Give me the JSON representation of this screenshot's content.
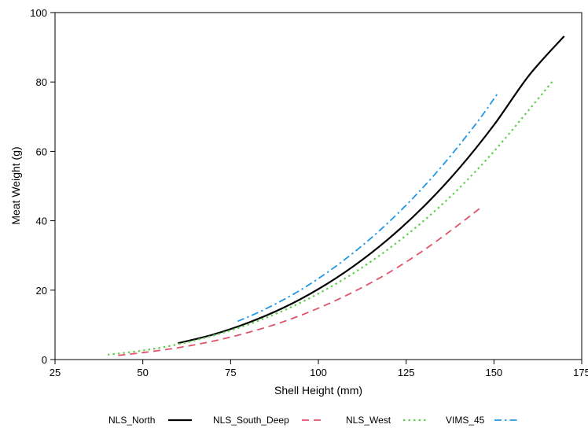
{
  "chart_data": {
    "type": "line",
    "xlabel": "Shell Height (mm)",
    "ylabel": "Meat Weight (g)",
    "xlim": [
      25,
      175
    ],
    "ylim": [
      0,
      100
    ],
    "xticks": [
      25,
      50,
      75,
      100,
      125,
      150,
      175
    ],
    "yticks": [
      0,
      20,
      40,
      60,
      80,
      100
    ],
    "grid": false,
    "legend_position": "bottom",
    "series": [
      {
        "name": "NLS_North",
        "color": "#000000",
        "dash": "solid",
        "x": [
          60,
          70,
          80,
          90,
          100,
          110,
          120,
          130,
          140,
          150,
          160,
          170
        ],
        "y": [
          4.7,
          7.2,
          10.6,
          14.9,
          20.3,
          26.9,
          34.8,
          44.1,
          55.0,
          67.6,
          81.9,
          93.2
        ]
      },
      {
        "name": "NLS_South_Deep",
        "color": "#df536b",
        "dash": "dashed",
        "x": [
          43,
          50,
          60,
          70,
          80,
          90,
          100,
          110,
          120,
          130,
          140,
          146
        ],
        "y": [
          1.2,
          2.0,
          3.4,
          5.3,
          7.8,
          10.9,
          14.8,
          19.5,
          25.0,
          31.5,
          38.9,
          43.6
        ]
      },
      {
        "name": "NLS_West",
        "color": "#61d04f",
        "dash": "dotted",
        "x": [
          40,
          50,
          60,
          70,
          80,
          90,
          100,
          110,
          120,
          130,
          140,
          150,
          160,
          167
        ],
        "y": [
          1.4,
          2.6,
          4.4,
          6.9,
          10.1,
          14.1,
          19.0,
          24.9,
          31.9,
          40.0,
          49.3,
          60.0,
          72.0,
          80.6
        ]
      },
      {
        "name": "VIMS_45",
        "color": "#2297e6",
        "dash": "dashdot",
        "x": [
          77,
          85,
          95,
          105,
          115,
          125,
          135,
          145,
          151
        ],
        "y": [
          11.0,
          14.6,
          20.1,
          26.9,
          35.0,
          44.5,
          55.5,
          68.1,
          76.6
        ]
      }
    ]
  }
}
